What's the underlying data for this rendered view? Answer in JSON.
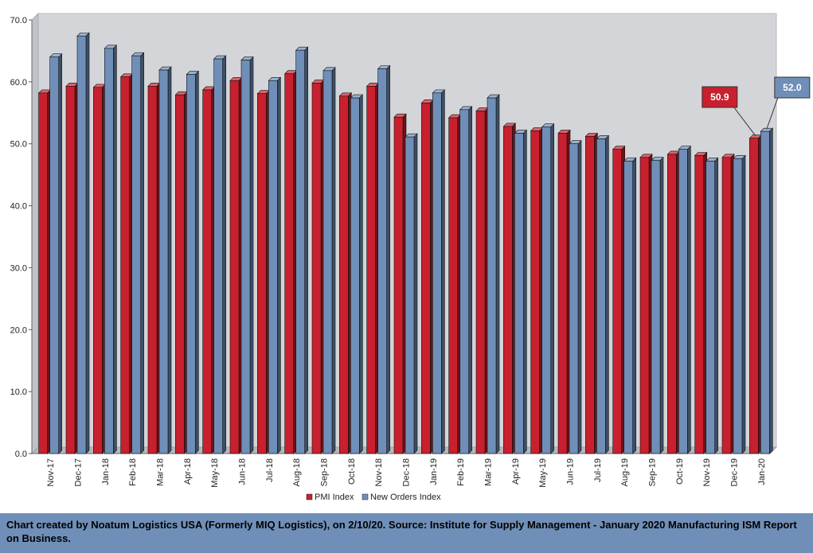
{
  "chart_data": {
    "type": "bar",
    "title": "",
    "xlabel": "",
    "ylabel": "",
    "ylim": [
      0,
      70
    ],
    "yticks": [
      "0.0",
      "10.0",
      "20.0",
      "30.0",
      "40.0",
      "50.0",
      "60.0",
      "70.0"
    ],
    "grid": false,
    "legend_position": "bottom",
    "categories": [
      "Nov-17",
      "Dec-17",
      "Jan-18",
      "Feb-18",
      "Mar-18",
      "Apr-18",
      "May-18",
      "Jun-18",
      "Jul-18",
      "Aug-18",
      "Sep-18",
      "Oct-18",
      "Nov-18",
      "Dec-18",
      "Jan-19",
      "Feb-19",
      "Mar-19",
      "Apr-19",
      "May-19",
      "Jun-19",
      "Jul-19",
      "Aug-19",
      "Sep-19",
      "Oct-19",
      "Nov-19",
      "Dec-19",
      "Jan-20"
    ],
    "series": [
      {
        "name": "PMI Index",
        "color": "#c8202e",
        "values": [
          58.2,
          59.3,
          59.1,
          60.8,
          59.3,
          57.9,
          58.7,
          60.2,
          58.1,
          61.3,
          59.8,
          57.7,
          59.3,
          54.3,
          56.6,
          54.2,
          55.3,
          52.8,
          52.1,
          51.7,
          51.2,
          49.1,
          47.8,
          48.3,
          48.1,
          47.8,
          50.9
        ]
      },
      {
        "name": "New Orders Index",
        "color": "#6f8fb8",
        "values": [
          64.0,
          67.4,
          65.4,
          64.2,
          61.9,
          61.2,
          63.7,
          63.5,
          60.2,
          65.1,
          61.8,
          57.4,
          62.1,
          51.1,
          58.2,
          55.5,
          57.4,
          51.7,
          52.7,
          50.0,
          50.8,
          47.2,
          47.3,
          49.1,
          47.2,
          47.6,
          52.0
        ]
      }
    ],
    "annotations": [
      {
        "series": "PMI Index",
        "category": "Jan-20",
        "text": "50.9"
      },
      {
        "series": "New Orders Index",
        "category": "Jan-20",
        "text": "52.0"
      }
    ]
  },
  "footer": {
    "text": "Chart created by Noatum Logistics USA (Formerly MIQ Logistics), on 2/10/20. Source: Institute for Supply Management - January 2020 Manufacturing ISM Report on Business."
  }
}
